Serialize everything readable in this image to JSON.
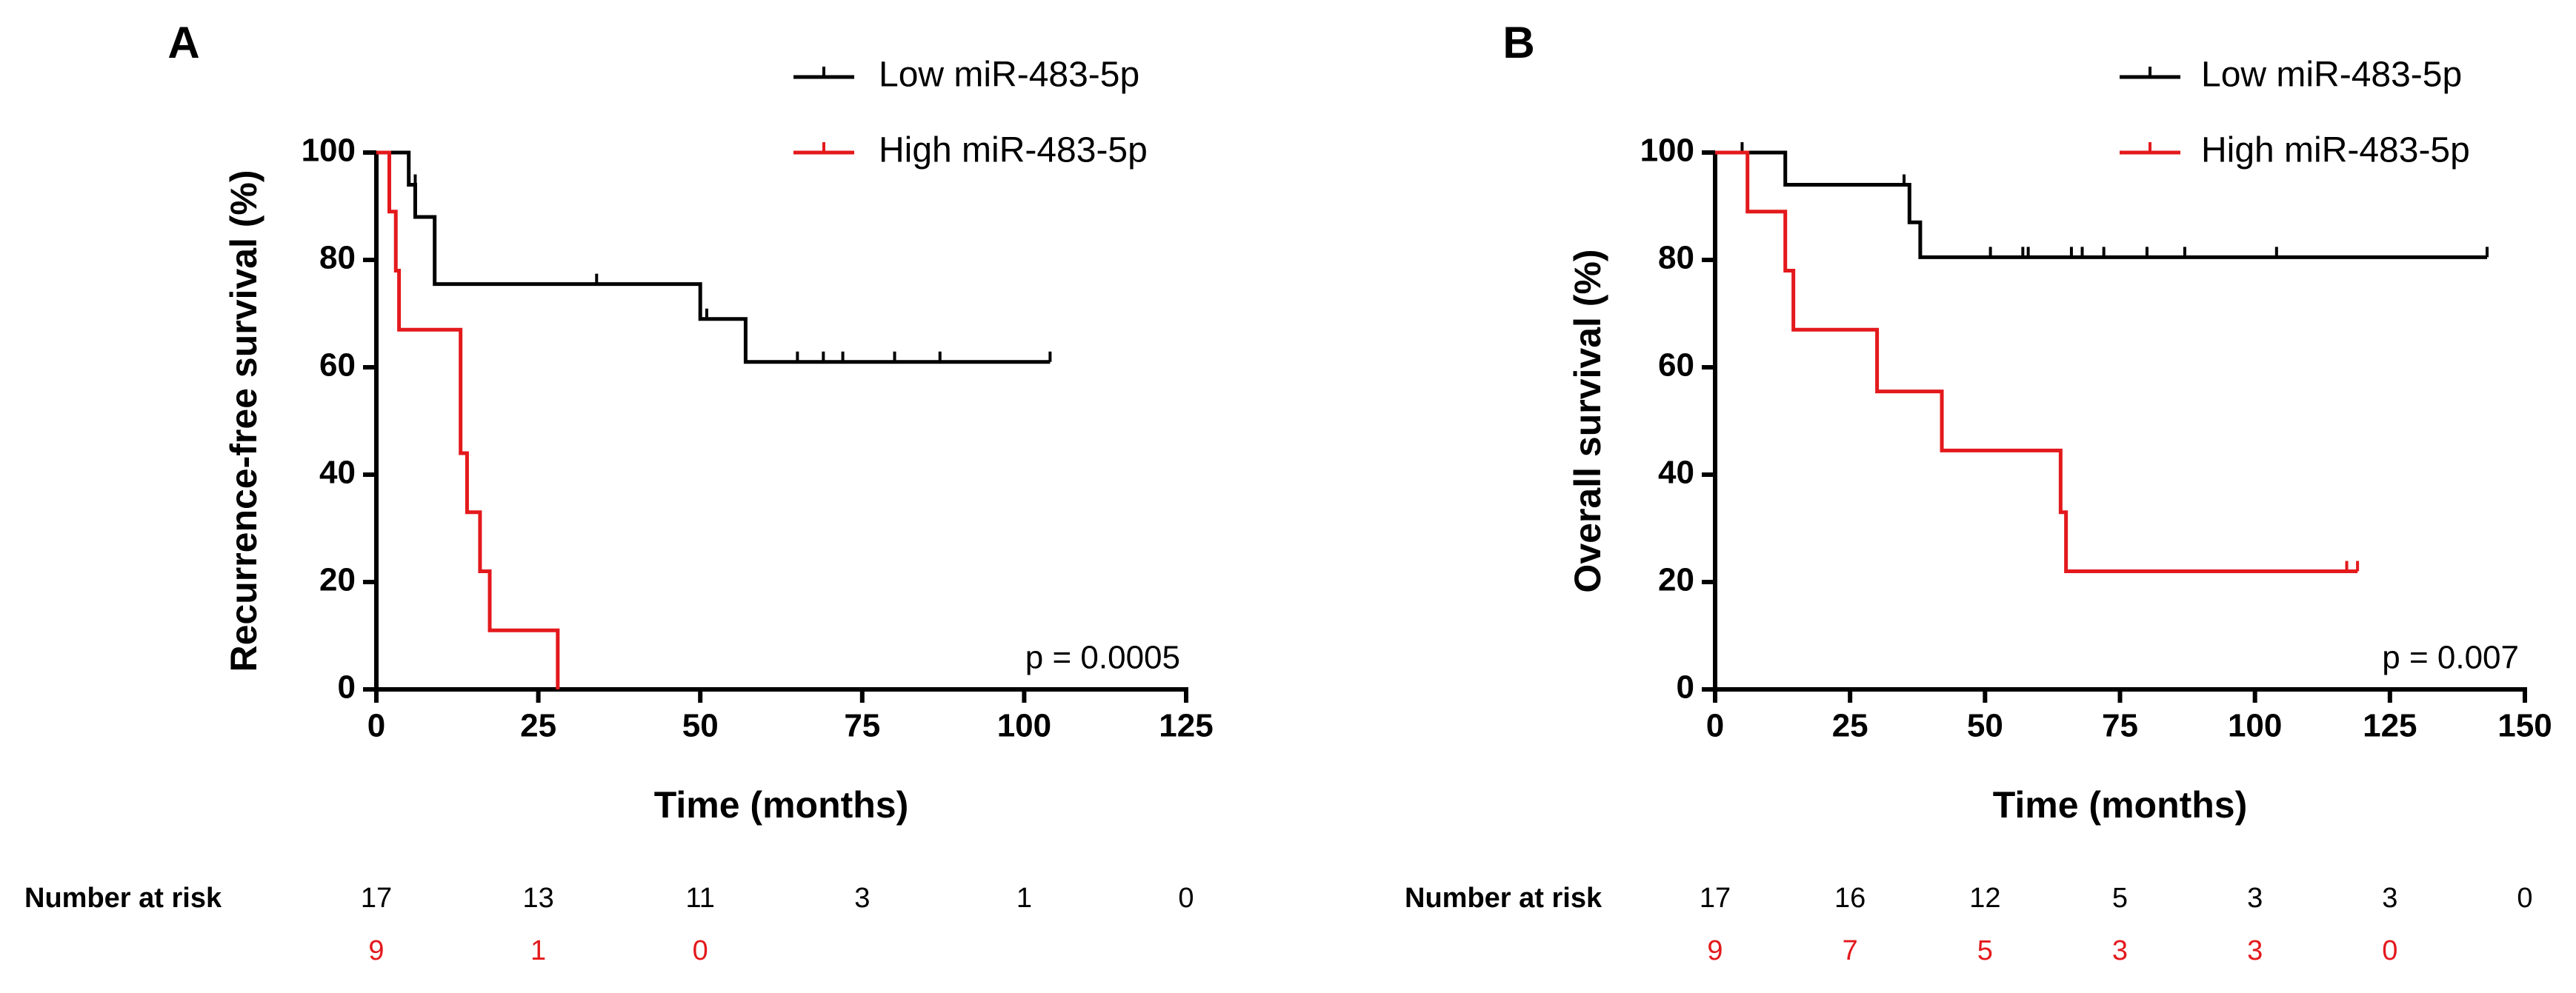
{
  "chart_data": [
    {
      "type": "step",
      "title": "A",
      "xlabel": "Time (months)",
      "ylabel": "Recurrence-free survival (%)",
      "xlim": [
        0,
        125
      ],
      "ylim": [
        0,
        100
      ],
      "xticks": [
        0,
        25,
        50,
        75,
        100,
        125
      ],
      "yticks": [
        0,
        20,
        40,
        60,
        80,
        100
      ],
      "annotation": "p = 0.0005",
      "series": [
        {
          "name": "Low miR-483-5p",
          "color": "#000000",
          "x": [
            0,
            5,
            5,
            6,
            6,
            9,
            9,
            50,
            50,
            57,
            57,
            104
          ],
          "values": [
            100,
            100,
            94,
            94,
            88,
            88,
            75.5,
            75.5,
            69,
            69,
            61,
            61
          ],
          "censor_x": [
            6,
            34,
            51,
            57,
            65,
            69,
            72,
            80,
            87,
            104
          ],
          "censor_values": [
            94,
            75.5,
            69,
            61,
            61,
            61,
            61,
            61,
            61,
            61
          ]
        },
        {
          "name": "High miR-483-5p",
          "color": "#e3191c",
          "x": [
            0,
            2,
            2,
            3,
            3,
            3.5,
            3.5,
            13,
            13,
            14,
            14,
            16,
            16,
            17.5,
            17.5,
            28,
            28
          ],
          "values": [
            100,
            100,
            89,
            89,
            78,
            78,
            67,
            67,
            44,
            44,
            33,
            33,
            22,
            22,
            11,
            11,
            0
          ],
          "censor_x": [],
          "censor_values": []
        }
      ],
      "number_at_risk": {
        "label": "Number at risk",
        "rows": [
          {
            "color": "#000000",
            "values": [
              17,
              13,
              11,
              3,
              1,
              0
            ]
          },
          {
            "color": "#e3191c",
            "values": [
              9,
              1,
              0,
              null,
              null,
              null
            ]
          }
        ]
      }
    },
    {
      "type": "step",
      "title": "B",
      "xlabel": "Time (months)",
      "ylabel": "Overall survival (%)",
      "xlim": [
        0,
        150
      ],
      "ylim": [
        0,
        100
      ],
      "xticks": [
        0,
        25,
        50,
        75,
        100,
        125,
        150
      ],
      "yticks": [
        0,
        20,
        40,
        60,
        80,
        100
      ],
      "annotation": "p = 0.007",
      "series": [
        {
          "name": "Low miR-483-5p",
          "color": "#000000",
          "x": [
            0,
            13,
            13,
            36,
            36,
            38,
            38,
            143
          ],
          "values": [
            100,
            100,
            94,
            94,
            87,
            87,
            80.5,
            80.5
          ],
          "censor_x": [
            5,
            35,
            51,
            57,
            58,
            66,
            68,
            72,
            80,
            87,
            104,
            143
          ],
          "censor_values": [
            100,
            94,
            80.5,
            80.5,
            80.5,
            80.5,
            80.5,
            80.5,
            80.5,
            80.5,
            80.5,
            80.5
          ]
        },
        {
          "name": "High miR-483-5p",
          "color": "#e3191c",
          "x": [
            0,
            6,
            6,
            13,
            13,
            14.5,
            14.5,
            30,
            30,
            42,
            42,
            64,
            64,
            65,
            65,
            119
          ],
          "values": [
            100,
            100,
            89,
            89,
            78,
            78,
            67,
            67,
            55.5,
            55.5,
            44.5,
            44.5,
            33,
            33,
            22,
            22
          ],
          "censor_x": [
            117,
            119
          ],
          "censor_values": [
            22,
            22
          ]
        }
      ],
      "number_at_risk": {
        "label": "Number at risk",
        "rows": [
          {
            "color": "#000000",
            "values": [
              17,
              16,
              12,
              5,
              3,
              3,
              0
            ]
          },
          {
            "color": "#e3191c",
            "values": [
              9,
              7,
              5,
              3,
              3,
              0,
              null
            ]
          }
        ]
      }
    }
  ]
}
